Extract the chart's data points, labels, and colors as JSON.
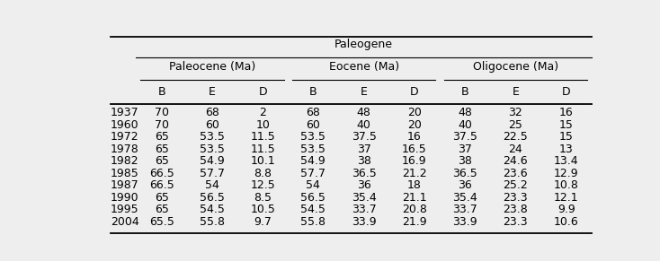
{
  "top_header": "Paleogene",
  "sub_headers": [
    "Paleocene (Ma)",
    "Eocene (Ma)",
    "Oligocene (Ma)"
  ],
  "col_groups": [
    "B",
    "E",
    "D",
    "B",
    "E",
    "D",
    "B",
    "E",
    "D"
  ],
  "row_labels": [
    "1937",
    "1960",
    "1972",
    "1978",
    "1982",
    "1985",
    "1987",
    "1990",
    "1995",
    "2004"
  ],
  "data": [
    [
      "70",
      "68",
      "2",
      "68",
      "48",
      "20",
      "48",
      "32",
      "16"
    ],
    [
      "70",
      "60",
      "10",
      "60",
      "40",
      "20",
      "40",
      "25",
      "15"
    ],
    [
      "65",
      "53.5",
      "11.5",
      "53.5",
      "37.5",
      "16",
      "37.5",
      "22.5",
      "15"
    ],
    [
      "65",
      "53.5",
      "11.5",
      "53.5",
      "37",
      "16.5",
      "37",
      "24",
      "13"
    ],
    [
      "65",
      "54.9",
      "10.1",
      "54.9",
      "38",
      "16.9",
      "38",
      "24.6",
      "13.4"
    ],
    [
      "66.5",
      "57.7",
      "8.8",
      "57.7",
      "36.5",
      "21.2",
      "36.5",
      "23.6",
      "12.9"
    ],
    [
      "66.5",
      "54",
      "12.5",
      "54",
      "36",
      "18",
      "36",
      "25.2",
      "10.8"
    ],
    [
      "65",
      "56.5",
      "8.5",
      "56.5",
      "35.4",
      "21.1",
      "35.4",
      "23.3",
      "12.1"
    ],
    [
      "65",
      "54.5",
      "10.5",
      "54.5",
      "33.7",
      "20.8",
      "33.7",
      "23.8",
      "9.9"
    ],
    [
      "65.5",
      "55.8",
      "9.7",
      "55.8",
      "33.9",
      "21.9",
      "33.9",
      "23.3",
      "10.6"
    ]
  ],
  "bg_color": "#eeeeee",
  "text_color": "#000000",
  "font_size": 9.0
}
